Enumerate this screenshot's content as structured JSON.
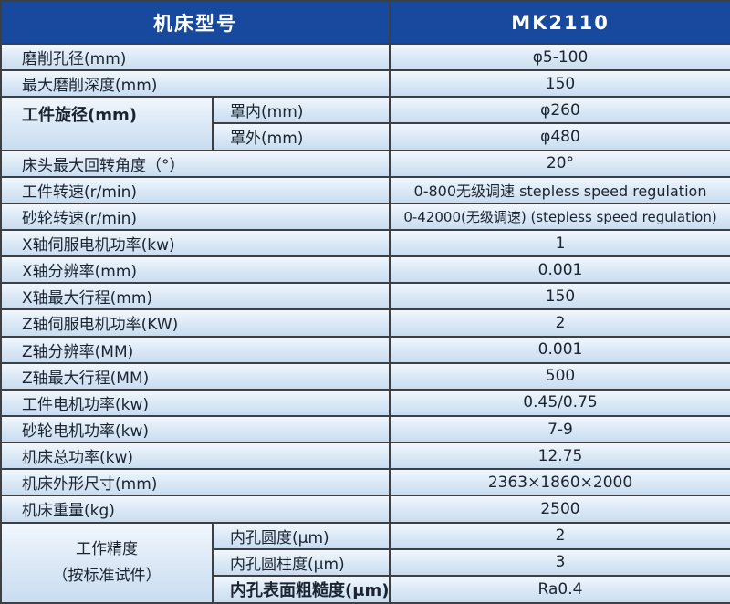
{
  "header": {
    "model_label": "机床型号",
    "model_value": "MK2110"
  },
  "specs": [
    {
      "label": "磨削孔径(mm)",
      "value": "φ5-100"
    },
    {
      "label": "最大磨削深度(mm)",
      "value": "150"
    },
    {
      "group": "工件旋径(mm)",
      "sub": "罩内(mm)",
      "value": "φ260"
    },
    {
      "sub": "罩外(mm)",
      "value": "φ480"
    },
    {
      "label": "床头最大回转角度（°）",
      "value": "20°"
    },
    {
      "label": "工件转速(r/min)",
      "value": "0-800无级调速 stepless speed regulation"
    },
    {
      "label": "砂轮转速(r/min)",
      "value": "0-42000(无级调速) (stepless speed regulation)"
    },
    {
      "label": "X轴伺服电机功率(kw)",
      "value": "1"
    },
    {
      "label": "X轴分辨率(mm)",
      "value": "0.001"
    },
    {
      "label": "X轴最大行程(mm)",
      "value": "150"
    },
    {
      "label": "Z轴伺服电机功率(KW)",
      "value": "2"
    },
    {
      "label": "Z轴分辨率(MM)",
      "value": "0.001"
    },
    {
      "label": "Z轴最大行程(MM)",
      "value": "500"
    },
    {
      "label": "工件电机功率(kw)",
      "value": "0.45/0.75"
    },
    {
      "label": "砂轮电机功率(kw)",
      "value": "7-9"
    },
    {
      "label": "机床总功率(kw)",
      "value": "12.75"
    },
    {
      "label": "机床外形尺寸(mm)",
      "value": "2363×1860×2000"
    },
    {
      "label": "机床重量(kg)",
      "value": "2500"
    },
    {
      "group_line1": "工作精度",
      "group_line2": "（按标准试件）",
      "sub": "内孔圆度(μm)",
      "value": "2"
    },
    {
      "sub": "内孔圆柱度(μm)",
      "value": "3"
    },
    {
      "sub": "内孔表面粗糙度(μm)",
      "value": "Ra0.4"
    }
  ],
  "colors": {
    "header_bg": "#17499e",
    "header_text": "#ffffff",
    "row_bg_top": "#f2f7fd",
    "row_bg_bottom": "#c9ddf0",
    "border": "#3d3f42",
    "text": "#1b2430"
  }
}
